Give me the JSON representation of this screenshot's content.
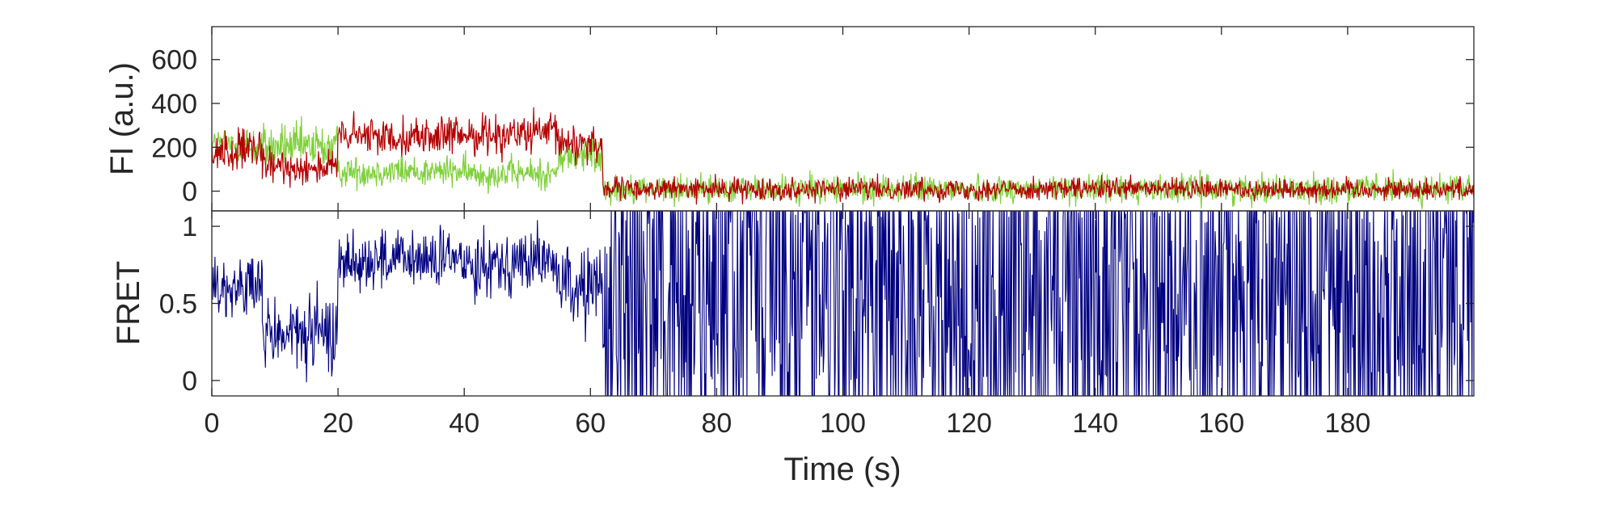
{
  "chart_data": [
    {
      "type": "line",
      "panel": "top",
      "xlabel": "",
      "ylabel": "FI (a.u.)",
      "xlim": [
        0,
        200
      ],
      "ylim": [
        -90,
        750
      ],
      "yticks": [
        0,
        200,
        400,
        600
      ],
      "grid": false,
      "series": [
        {
          "color": "#7fd13b",
          "segments": [
            {
              "x_start": 0,
              "x_end": 5,
              "mean": 210,
              "noise": 60
            },
            {
              "x_start": 5,
              "x_end": 20,
              "mean": 200,
              "noise": 75
            },
            {
              "x_start": 20,
              "x_end": 40,
              "mean": 90,
              "noise": 50
            },
            {
              "x_start": 40,
              "x_end": 55,
              "mean": 80,
              "noise": 50
            },
            {
              "x_start": 55,
              "x_end": 62,
              "mean": 160,
              "noise": 60
            },
            {
              "x_start": 62,
              "x_end": 200,
              "mean": 10,
              "noise": 45
            }
          ]
        },
        {
          "color": "#b40000",
          "segments": [
            {
              "x_start": 0,
              "x_end": 8,
              "mean": 180,
              "noise": 70
            },
            {
              "x_start": 8,
              "x_end": 20,
              "mean": 110,
              "noise": 55
            },
            {
              "x_start": 20,
              "x_end": 40,
              "mean": 250,
              "noise": 60
            },
            {
              "x_start": 40,
              "x_end": 55,
              "mean": 260,
              "noise": 65
            },
            {
              "x_start": 55,
              "x_end": 62,
              "mean": 220,
              "noise": 70
            },
            {
              "x_start": 62,
              "x_end": 200,
              "mean": 10,
              "noise": 35
            }
          ]
        }
      ]
    },
    {
      "type": "line",
      "panel": "bottom",
      "xlabel": "Time (s)",
      "ylabel": "FRET",
      "xlim": [
        0,
        200
      ],
      "ylim": [
        -0.1,
        1.1
      ],
      "xticks": [
        0,
        20,
        40,
        60,
        80,
        100,
        120,
        140,
        160,
        180
      ],
      "yticks": [
        0,
        0.5,
        1
      ],
      "grid": false,
      "series": [
        {
          "color": "#000080",
          "segments": [
            {
              "x_start": 0,
              "x_end": 8,
              "mean": 0.6,
              "noise": 0.15
            },
            {
              "x_start": 8,
              "x_end": 20,
              "mean": 0.3,
              "noise": 0.18
            },
            {
              "x_start": 20,
              "x_end": 40,
              "mean": 0.78,
              "noise": 0.14
            },
            {
              "x_start": 40,
              "x_end": 55,
              "mean": 0.77,
              "noise": 0.15
            },
            {
              "x_start": 55,
              "x_end": 62,
              "mean": 0.6,
              "noise": 0.18
            },
            {
              "x_start": 62,
              "x_end": 200,
              "mean": 0.5,
              "noise": 0.7
            }
          ]
        }
      ]
    }
  ]
}
